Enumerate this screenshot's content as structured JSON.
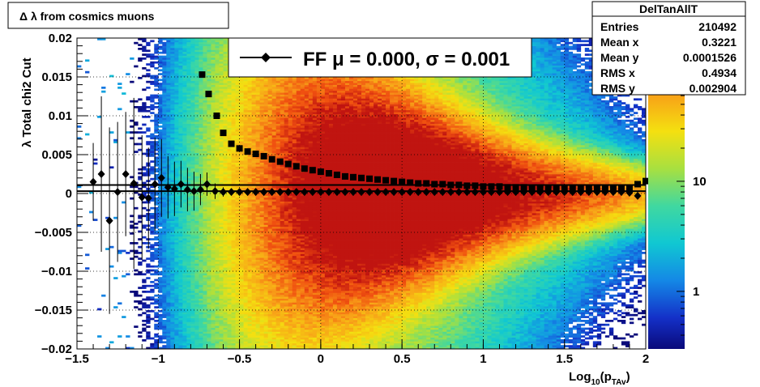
{
  "chart_data": {
    "type": "heatmap",
    "title": "Δ λ from cosmics muons",
    "xlabel": "Log",
    "xlabel_sub": "10",
    "xlabel_arg_open": "(p",
    "xlabel_arg_sub": "TAv",
    "xlabel_arg_close": ")",
    "ylabel": "λ  Total chi2 Cut",
    "xlim": [
      -1.5,
      2
    ],
    "ylim": [
      -0.02,
      0.02
    ],
    "x_ticks": [
      -1.5,
      -1,
      -0.5,
      0,
      0.5,
      1,
      1.5,
      2
    ],
    "x_tick_labels": [
      "−1.5",
      "−1",
      "−0.5",
      "0",
      "0.5",
      "1",
      "1.5",
      "2"
    ],
    "y_ticks": [
      -0.02,
      -0.015,
      -0.01,
      -0.005,
      0,
      0.005,
      0.01,
      0.015,
      0.02
    ],
    "y_tick_labels": [
      "−0.02",
      "−0.015",
      "−0.01",
      "−0.005",
      "0",
      "0.005",
      "0.01",
      "0.015",
      "0.02"
    ],
    "grid": true,
    "z_log": true,
    "z_range": [
      0.3,
      200
    ],
    "z_ticks": [
      1,
      10
    ],
    "z_tick_labels": [
      "1",
      "10"
    ],
    "stats": {
      "name": "DelTanAllT",
      "rows": [
        {
          "label": "Entries",
          "value": "210492"
        },
        {
          "label": "Mean x",
          "value": "0.3221"
        },
        {
          "label": "Mean y",
          "value": "0.0001526"
        },
        {
          "label": "RMS x",
          "value": "0.4934"
        },
        {
          "label": "RMS y",
          "value": "0.002904"
        }
      ]
    },
    "legend": {
      "text": "FF μ =  0.000, σ =   0.001",
      "position": "top-center"
    },
    "series": [
      {
        "name": "FF μ =  0.000, σ =   0.001",
        "marker": "diamond",
        "points": [
          [
            -1.4,
            0.0015,
            0.005
          ],
          [
            -1.35,
            0.0025,
            0.01
          ],
          [
            -1.3,
            -0.0035,
            0.012
          ],
          [
            -1.25,
            0.0002,
            0.009
          ],
          [
            -1.2,
            0.0025,
            0.008
          ],
          [
            -1.15,
            0.0013,
            0.011
          ],
          [
            -1.1,
            -0.0005,
            0.008
          ],
          [
            -1.06,
            -0.0006,
            0.0065
          ],
          [
            -1.02,
            0.0012,
            0.006
          ],
          [
            -0.98,
            0.002,
            0.005
          ],
          [
            -0.94,
            0.0008,
            0.004
          ],
          [
            -0.9,
            0.0006,
            0.0035
          ],
          [
            -0.86,
            0.0012,
            0.003
          ],
          [
            -0.82,
            0.0005,
            0.0028
          ],
          [
            -0.78,
            0.0003,
            0.0025
          ],
          [
            -0.74,
            0.0005,
            0.002
          ],
          [
            -0.7,
            0.0012,
            0.0015
          ],
          [
            -0.65,
            0.0003,
            0.001
          ],
          [
            -0.6,
            0.0002,
            0.0006
          ],
          [
            -0.55,
            0.0002,
            0.0004
          ],
          [
            -0.5,
            0.0002,
            0.0003
          ],
          [
            -0.45,
            0.0002,
            0.0002
          ],
          [
            -0.4,
            0.0002,
            0.0002
          ],
          [
            -0.35,
            0.0002,
            0.0001
          ],
          [
            -0.3,
            0.0002,
            0.0001
          ],
          [
            -0.25,
            0.0002,
            0.0001
          ],
          [
            -0.2,
            0.0002,
            0.0001
          ],
          [
            -0.15,
            0.0002,
            0.0001
          ],
          [
            -0.1,
            0.0002,
            0.0001
          ],
          [
            -0.05,
            0.0002,
            0.0001
          ],
          [
            0.0,
            0.0002,
            0.0001
          ],
          [
            0.05,
            0.0002,
            0.0001
          ],
          [
            0.1,
            0.0002,
            0.0001
          ],
          [
            0.15,
            0.0002,
            0.0001
          ],
          [
            0.2,
            0.0002,
            0.0001
          ],
          [
            0.25,
            0.0002,
            0.0001
          ],
          [
            0.3,
            0.0002,
            0.0001
          ],
          [
            0.35,
            0.0002,
            0.0001
          ],
          [
            0.4,
            0.0002,
            0.0001
          ],
          [
            0.45,
            0.0002,
            0.0001
          ],
          [
            0.5,
            0.0002,
            0.0001
          ],
          [
            0.55,
            0.0002,
            0.0001
          ],
          [
            0.6,
            0.0002,
            0.0001
          ],
          [
            0.65,
            0.0002,
            0.0001
          ],
          [
            0.7,
            0.0002,
            0.0001
          ],
          [
            0.75,
            0.0002,
            0.0001
          ],
          [
            0.8,
            0.0002,
            0.0001
          ],
          [
            0.85,
            0.0002,
            0.0001
          ],
          [
            0.9,
            0.0002,
            0.0001
          ],
          [
            0.95,
            0.0002,
            0.0001
          ],
          [
            1.0,
            0.0002,
            0.0001
          ],
          [
            1.05,
            0.0002,
            0.0001
          ],
          [
            1.1,
            0.0002,
            0.0001
          ],
          [
            1.15,
            0.0002,
            0.0001
          ],
          [
            1.2,
            0.0002,
            0.0001
          ],
          [
            1.25,
            0.0002,
            0.0001
          ],
          [
            1.3,
            0.0002,
            0.0001
          ],
          [
            1.35,
            0.0002,
            0.0001
          ],
          [
            1.4,
            0.0002,
            0.0001
          ],
          [
            1.45,
            0.0002,
            0.0001
          ],
          [
            1.5,
            0.0002,
            0.0001
          ],
          [
            1.55,
            0.0002,
            0.0001
          ],
          [
            1.6,
            0.0002,
            0.0001
          ],
          [
            1.65,
            0.0002,
            0.0001
          ],
          [
            1.7,
            0.0002,
            0.0001
          ],
          [
            1.75,
            0.0002,
            0.0001
          ],
          [
            1.8,
            0.0002,
            0.0001
          ],
          [
            1.85,
            0.0002,
            0.0002
          ],
          [
            1.9,
            0.0001,
            0.0002
          ],
          [
            1.95,
            -0.0003,
            0.0003
          ]
        ]
      },
      {
        "marker": "square",
        "points": [
          [
            -0.73,
            0.0153
          ],
          [
            -0.69,
            0.0128
          ],
          [
            -0.64,
            0.01
          ],
          [
            -0.6,
            0.0078
          ],
          [
            -0.55,
            0.0064
          ],
          [
            -0.5,
            0.0058
          ],
          [
            -0.45,
            0.0054
          ],
          [
            -0.4,
            0.0051
          ],
          [
            -0.35,
            0.0048
          ],
          [
            -0.3,
            0.0044
          ],
          [
            -0.25,
            0.0041
          ],
          [
            -0.2,
            0.0038
          ],
          [
            -0.15,
            0.0035
          ],
          [
            -0.1,
            0.0032
          ],
          [
            -0.05,
            0.003
          ],
          [
            0.0,
            0.0028
          ],
          [
            0.05,
            0.0026
          ],
          [
            0.1,
            0.0024
          ],
          [
            0.15,
            0.0022
          ],
          [
            0.2,
            0.0021
          ],
          [
            0.25,
            0.002
          ],
          [
            0.3,
            0.0019
          ],
          [
            0.35,
            0.0018
          ],
          [
            0.4,
            0.0017
          ],
          [
            0.45,
            0.0016
          ],
          [
            0.5,
            0.0015
          ],
          [
            0.55,
            0.0014
          ],
          [
            0.6,
            0.0013
          ],
          [
            0.65,
            0.0013
          ],
          [
            0.7,
            0.0012
          ],
          [
            0.75,
            0.0012
          ],
          [
            0.8,
            0.0011
          ],
          [
            0.85,
            0.0011
          ],
          [
            0.9,
            0.001
          ],
          [
            0.95,
            0.001
          ],
          [
            1.0,
            0.0009
          ],
          [
            1.05,
            0.0009
          ],
          [
            1.1,
            0.0009
          ],
          [
            1.15,
            0.0008
          ],
          [
            1.2,
            0.0008
          ],
          [
            1.25,
            0.0008
          ],
          [
            1.3,
            0.0007
          ],
          [
            1.35,
            0.0007
          ],
          [
            1.4,
            0.0007
          ],
          [
            1.45,
            0.0007
          ],
          [
            1.5,
            0.0006
          ],
          [
            1.55,
            0.0006
          ],
          [
            1.6,
            0.0006
          ],
          [
            1.65,
            0.0006
          ],
          [
            1.7,
            0.0006
          ],
          [
            1.75,
            0.0006
          ],
          [
            1.8,
            0.0006
          ],
          [
            1.85,
            0.0006
          ],
          [
            1.9,
            0.0007
          ],
          [
            1.95,
            0.0012
          ],
          [
            2.0,
            0.0016
          ]
        ]
      }
    ],
    "reference_lines": [
      {
        "y": 0.0003,
        "color": "#000000"
      },
      {
        "y": 0.0011,
        "color": "#000000"
      }
    ]
  }
}
